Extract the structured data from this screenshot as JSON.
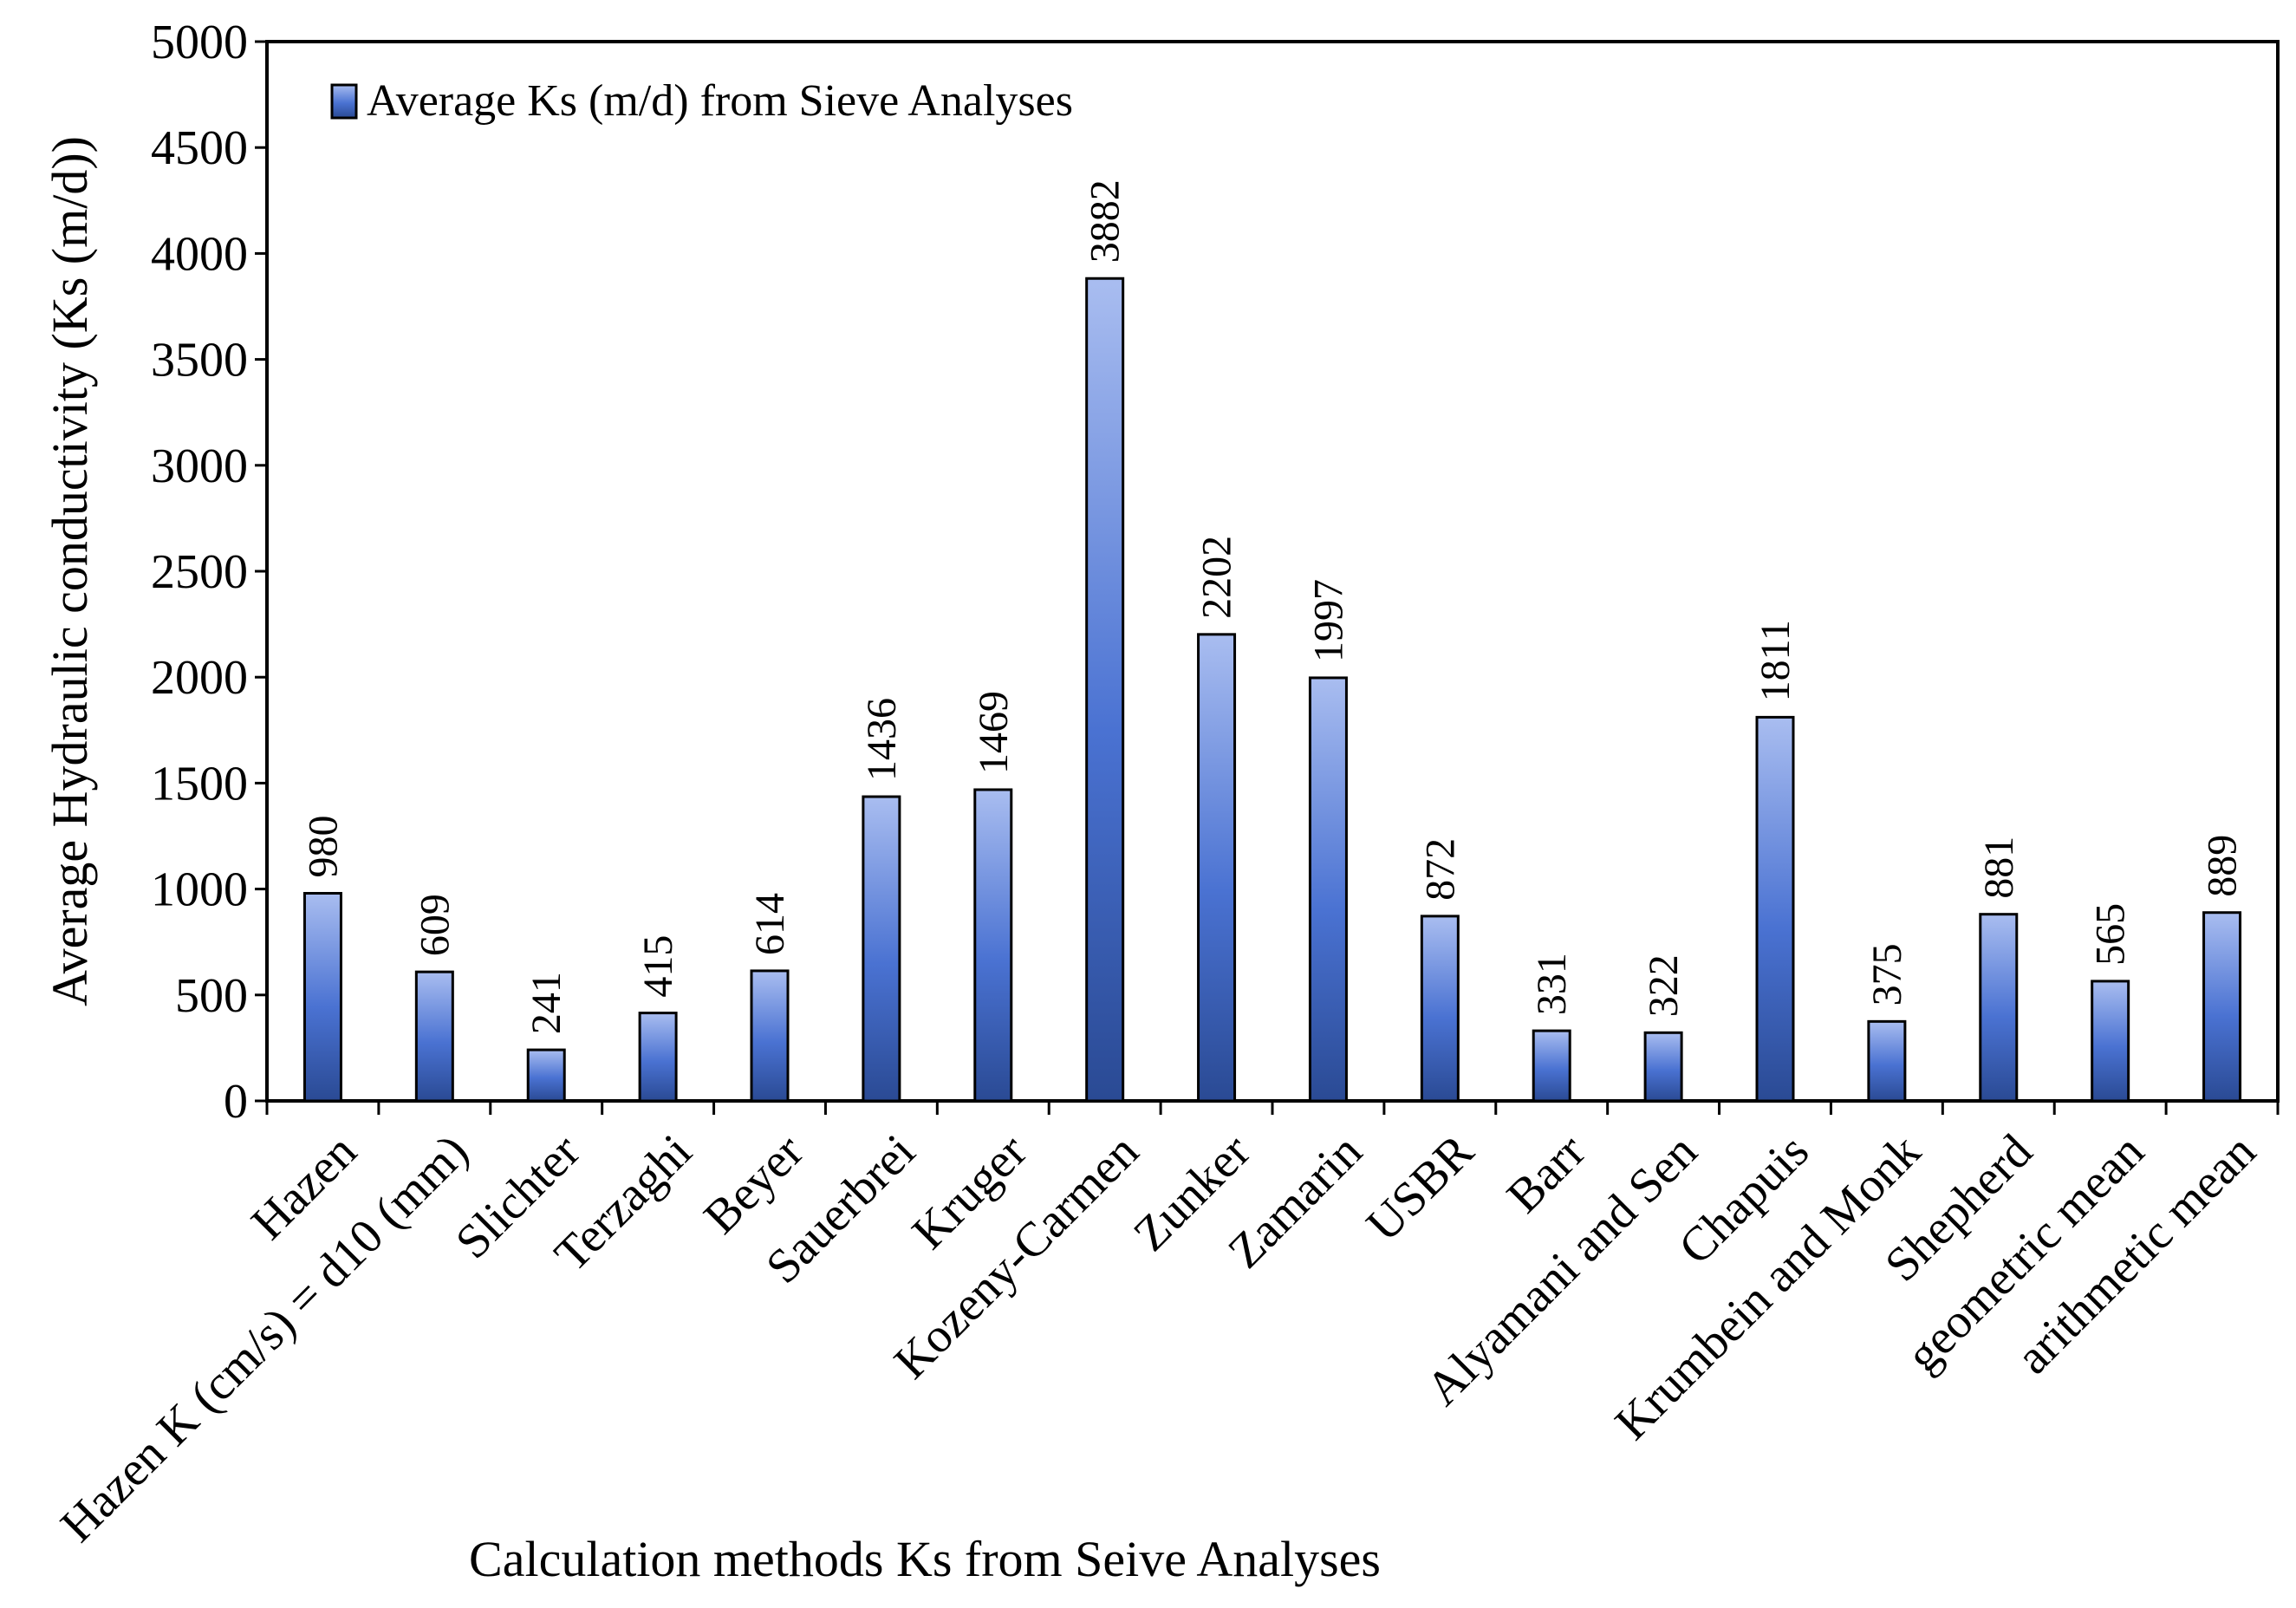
{
  "chart_data": {
    "type": "bar",
    "title": "",
    "xlabel": "Calculation methods Ks from Seive Analyses",
    "ylabel": "Average Hydraulic conductivity (Ks (m/d))",
    "ylim": [
      0,
      5000
    ],
    "ytick_step": 500,
    "grid": false,
    "legend_position": "top-left",
    "categories": [
      "Hazen",
      "Hazen K (cm/s) = d10 (mm)",
      "Slichter",
      "Terzaghi",
      "Beyer",
      "Sauerbrei",
      "Kruger",
      "Kozeny-Carmen",
      "Zunker",
      "Zamarin",
      "USBR",
      "Barr",
      "Alyamani and Sen",
      "Chapuis",
      "Krumbein and Monk",
      "Shepherd",
      "geometric mean",
      "arithmetic mean"
    ],
    "series": [
      {
        "name": "Average Ks (m/d) from Sieve Analyses",
        "values": [
          980,
          609,
          241,
          415,
          614,
          1436,
          1469,
          3882,
          2202,
          1997,
          872,
          331,
          322,
          1811,
          375,
          881,
          565,
          889
        ],
        "color_light": "#a9bdf0",
        "color_mid": "#4a72d2",
        "color_dark": "#2a4a94"
      }
    ]
  }
}
